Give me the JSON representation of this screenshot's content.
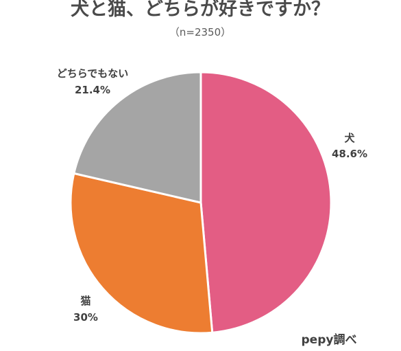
{
  "chart_data": {
    "type": "pie",
    "title": "犬と猫、どちらが好きですか？",
    "subtitle": "（n=2350）",
    "slices": [
      {
        "label": "犬",
        "value": 48.6,
        "value_label": "48.6%",
        "color": "#e35d84"
      },
      {
        "label": "猫",
        "value": 30.0,
        "value_label": "30%",
        "color": "#ed7d31"
      },
      {
        "label": "どちらでもない",
        "value": 21.4,
        "value_label": "21.4%",
        "color": "#a5a5a5"
      }
    ],
    "start": "12 o'clock",
    "direction": "clockwise",
    "source_note": "pepy調べ"
  }
}
